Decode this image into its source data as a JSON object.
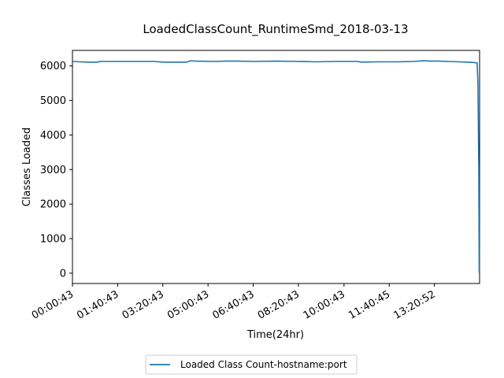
{
  "chart_data": {
    "type": "line",
    "title": "LoadedClassCount_RuntimeSmd_2018-03-13",
    "xlabel": "Time(24hr)",
    "ylabel": "Classes Loaded",
    "ylim": [
      -300,
      6450
    ],
    "xlim": [
      0,
      1000
    ],
    "yticks": [
      0,
      1000,
      2000,
      3000,
      4000,
      5000,
      6000
    ],
    "xticks": [
      {
        "value": 0,
        "label": "00:00:43"
      },
      {
        "value": 111,
        "label": "01:40:43"
      },
      {
        "value": 222,
        "label": "03:20:43"
      },
      {
        "value": 333,
        "label": "05:00:43"
      },
      {
        "value": 444,
        "label": "06:40:43"
      },
      {
        "value": 555,
        "label": "08:20:43"
      },
      {
        "value": 667,
        "label": "10:00:43"
      },
      {
        "value": 778,
        "label": "11:40:45"
      },
      {
        "value": 889,
        "label": "13:20:52"
      }
    ],
    "legend": {
      "position": "bottom-center"
    },
    "series": [
      {
        "name": "Loaded Class Count-hostname:port",
        "color": "#1f77b4",
        "x": [
          0,
          20,
          40,
          60,
          70,
          100,
          150,
          200,
          225,
          250,
          280,
          290,
          300,
          350,
          380,
          400,
          450,
          500,
          550,
          600,
          650,
          700,
          710,
          750,
          800,
          840,
          860,
          880,
          900,
          920,
          950,
          970,
          985,
          994,
          996,
          998,
          999
        ],
        "y": [
          6130,
          6120,
          6110,
          6110,
          6130,
          6130,
          6130,
          6130,
          6110,
          6110,
          6110,
          6150,
          6140,
          6130,
          6140,
          6140,
          6130,
          6140,
          6130,
          6120,
          6130,
          6130,
          6110,
          6120,
          6120,
          6130,
          6150,
          6140,
          6140,
          6130,
          6120,
          6110,
          6100,
          6090,
          5500,
          3000,
          10
        ]
      }
    ]
  }
}
